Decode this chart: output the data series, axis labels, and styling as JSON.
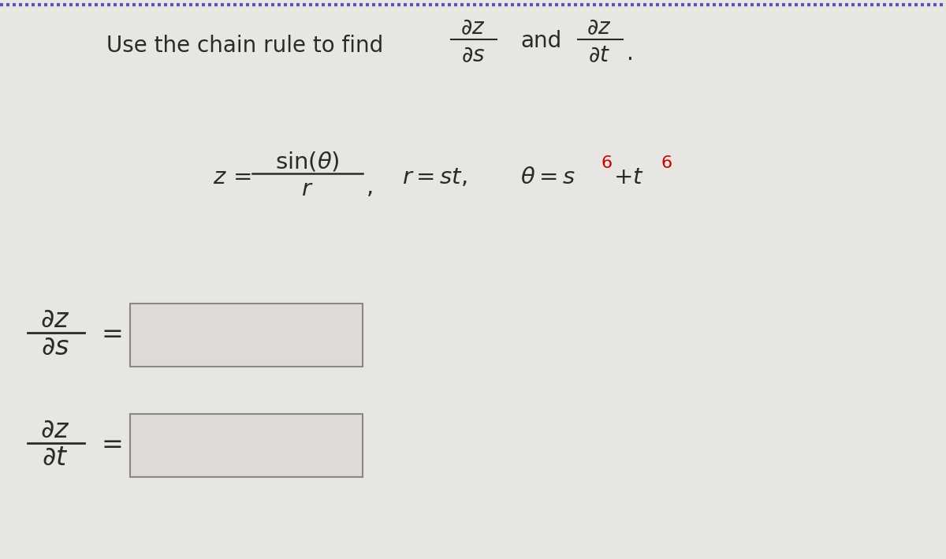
{
  "background_color": "#e8e6e3",
  "text_color": "#2a2a2a",
  "red_color": "#cc0000",
  "box_fill": "#dedad6",
  "box_edge": "#888888",
  "figsize": [
    12.0,
    7.09
  ],
  "dpi": 100,
  "top_border_color": "#4444aa",
  "font_size_main": 20,
  "font_size_eq": 21,
  "font_size_bottom": 24
}
